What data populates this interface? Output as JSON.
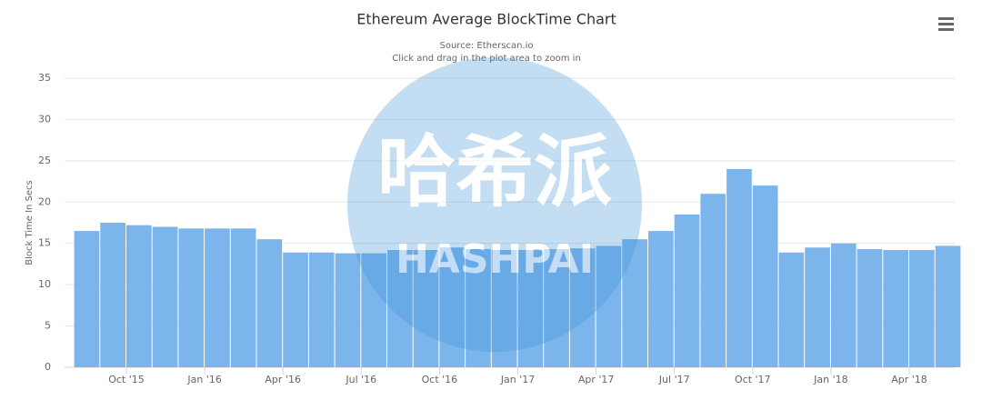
{
  "chart_data": {
    "type": "bar",
    "title": "Ethereum Average BlockTime Chart",
    "subtitle": [
      "Source: Etherscan.io",
      "Click and drag in the plot area to zoom in"
    ],
    "y_label": "Block Time In Secs",
    "watermark": [
      "哈希派",
      "HASHPAI"
    ],
    "x": [
      "2015-08",
      "2015-09",
      "2015-10",
      "2015-11",
      "2015-12",
      "2016-01",
      "2016-02",
      "2016-03",
      "2016-04",
      "2016-05",
      "2016-06",
      "2016-07",
      "2016-08",
      "2016-09",
      "2016-10",
      "2016-11",
      "2016-12",
      "2017-01",
      "2017-02",
      "2017-03",
      "2017-04",
      "2017-05",
      "2017-06",
      "2017-07",
      "2017-08",
      "2017-09",
      "2017-10",
      "2017-11",
      "2017-12",
      "2018-01",
      "2018-02",
      "2018-03",
      "2018-04",
      "2018-05"
    ],
    "values": [
      16.5,
      17.5,
      17.2,
      17,
      16.8,
      16.8,
      16.8,
      15.5,
      13.9,
      13.9,
      13.8,
      13.8,
      14.2,
      14.2,
      14.5,
      14.3,
      14.2,
      14.2,
      14.3,
      14.4,
      14.7,
      15.5,
      16.5,
      18.5,
      21,
      24,
      22,
      13.9,
      14.5,
      15,
      14.3,
      14.2,
      14.2,
      14.7
    ],
    "color": "#7cb5ec",
    "xticks": [
      {
        "value": "2015-10",
        "label": "Oct '15"
      },
      {
        "value": "2016-01",
        "label": "Jan '16"
      },
      {
        "value": "2016-04",
        "label": "Apr '16"
      },
      {
        "value": "2016-07",
        "label": "Jul '16"
      },
      {
        "value": "2016-10",
        "label": "Oct '16"
      },
      {
        "value": "2017-01",
        "label": "Jan '17"
      },
      {
        "value": "2017-04",
        "label": "Apr '17"
      },
      {
        "value": "2017-07",
        "label": "Jul '17"
      },
      {
        "value": "2017-10",
        "label": "Oct '17"
      },
      {
        "value": "2018-01",
        "label": "Jan '18"
      },
      {
        "value": "2018-04",
        "label": "Apr '18"
      }
    ],
    "ylim": [
      0,
      35
    ],
    "yticks": [
      0,
      5,
      10,
      15,
      20,
      25,
      30,
      35
    ],
    "grid": true
  }
}
